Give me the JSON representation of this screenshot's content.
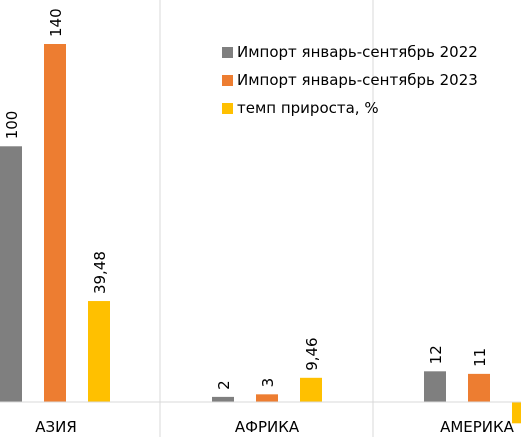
{
  "chart_data": {
    "type": "bar",
    "categories": [
      "АЗИЯ",
      "АФРИКА",
      "АМЕРИКА"
    ],
    "series": [
      {
        "name": "Импорт январь-сентябрь 2022",
        "color": "#7f7f7f",
        "values": [
          100,
          2,
          12
        ],
        "labels": [
          "100",
          "2",
          "12"
        ]
      },
      {
        "name": "Импорт январь-сентябрь 2023",
        "color": "#ed7d31",
        "values": [
          140,
          3,
          11
        ],
        "labels": [
          "140",
          "3",
          "11"
        ]
      },
      {
        "name": "темп прироста, %",
        "color": "#ffc000",
        "values": [
          39.48,
          9.46,
          -8.33
        ],
        "labels": [
          "39,48",
          "9,46",
          ""
        ]
      }
    ],
    "ylim": [
      -10,
      140
    ],
    "grid": false,
    "legend_position": "top-right"
  }
}
